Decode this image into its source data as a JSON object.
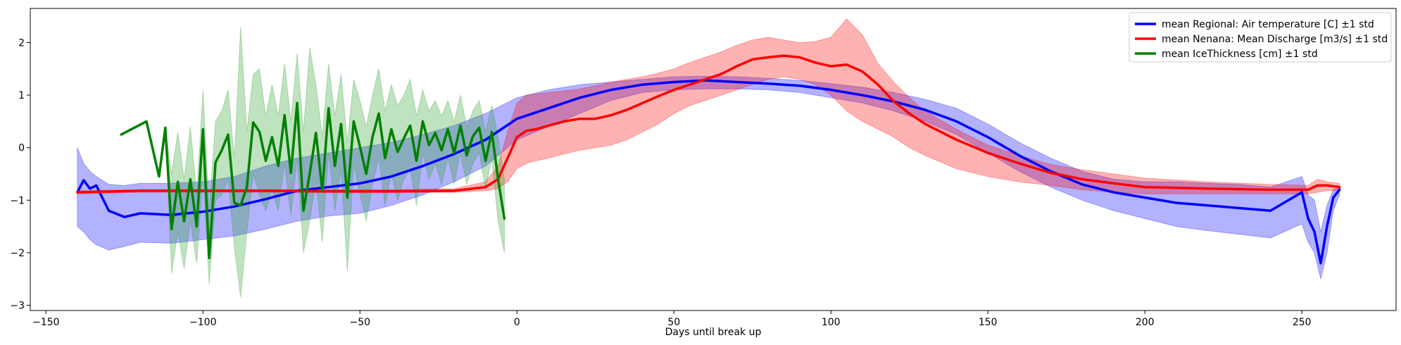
{
  "chart_data": {
    "type": "line",
    "title": "",
    "xlabel": "Days until break up",
    "ylabel": "",
    "xlim": [
      -155,
      280
    ],
    "ylim": [
      -3.1,
      2.65
    ],
    "xticks": [
      -150,
      -100,
      -50,
      0,
      50,
      100,
      150,
      200,
      250
    ],
    "xtick_labels": [
      "−150",
      "−100",
      "−50",
      "0",
      "50",
      "100",
      "150",
      "200",
      "250"
    ],
    "yticks": [
      -3,
      -2,
      -1,
      0,
      1,
      2
    ],
    "ytick_labels": [
      "−3",
      "−2",
      "−1",
      "0",
      "1",
      "2"
    ],
    "grid": false,
    "legend": "top-right",
    "series": [
      {
        "name": "mean Regional: Air temperature [C] ±1 std",
        "color": "#0000ff",
        "band_color": "#0000ff",
        "x": [
          -140,
          -138,
          -136,
          -134,
          -130,
          -125,
          -120,
          -110,
          -100,
          -90,
          -80,
          -70,
          -60,
          -50,
          -40,
          -30,
          -20,
          -10,
          0,
          10,
          20,
          30,
          40,
          50,
          60,
          70,
          80,
          90,
          100,
          110,
          120,
          130,
          140,
          150,
          160,
          170,
          180,
          190,
          200,
          210,
          220,
          230,
          240,
          250,
          252,
          254,
          256,
          258,
          260,
          262
        ],
        "mean": [
          -0.85,
          -0.62,
          -0.78,
          -0.72,
          -1.2,
          -1.32,
          -1.25,
          -1.28,
          -1.22,
          -1.12,
          -0.98,
          -0.82,
          -0.75,
          -0.68,
          -0.55,
          -0.35,
          -0.12,
          0.15,
          0.55,
          0.75,
          0.95,
          1.1,
          1.2,
          1.25,
          1.28,
          1.25,
          1.22,
          1.18,
          1.1,
          1.0,
          0.88,
          0.72,
          0.5,
          0.2,
          -0.15,
          -0.45,
          -0.7,
          -0.85,
          -0.95,
          -1.05,
          -1.1,
          -1.15,
          -1.2,
          -0.85,
          -1.35,
          -1.6,
          -2.2,
          -1.5,
          -0.95,
          -0.8
        ],
        "upper": [
          0.0,
          -0.3,
          -0.45,
          -0.55,
          -0.7,
          -0.72,
          -0.68,
          -0.68,
          -0.65,
          -0.55,
          -0.35,
          -0.2,
          -0.1,
          0.0,
          0.1,
          0.25,
          0.42,
          0.65,
          0.95,
          1.1,
          1.2,
          1.25,
          1.3,
          1.35,
          1.36,
          1.35,
          1.32,
          1.28,
          1.22,
          1.15,
          1.05,
          0.92,
          0.75,
          0.45,
          0.1,
          -0.2,
          -0.45,
          -0.6,
          -0.65,
          -0.65,
          -0.68,
          -0.7,
          -0.75,
          -0.55,
          -0.9,
          -1.0,
          -1.6,
          -1.1,
          -0.8,
          -0.75
        ],
        "lower": [
          -1.5,
          -1.6,
          -1.75,
          -1.85,
          -1.95,
          -1.88,
          -1.8,
          -1.82,
          -1.75,
          -1.68,
          -1.55,
          -1.4,
          -1.3,
          -1.25,
          -1.1,
          -0.9,
          -0.65,
          -0.35,
          0.15,
          0.4,
          0.65,
          0.9,
          1.05,
          1.1,
          1.12,
          1.12,
          1.1,
          1.05,
          0.95,
          0.85,
          0.7,
          0.5,
          0.25,
          -0.1,
          -0.45,
          -0.75,
          -1.0,
          -1.2,
          -1.35,
          -1.5,
          -1.58,
          -1.65,
          -1.72,
          -1.45,
          -1.8,
          -2.0,
          -2.5,
          -2.0,
          -1.2,
          -0.9
        ]
      },
      {
        "name": "mean Nenana: Mean Discharge [m3/s] ±1 std",
        "color": "#ff0000",
        "band_color": "#ff0000",
        "x": [
          -140,
          -120,
          -100,
          -80,
          -60,
          -40,
          -20,
          -10,
          -6,
          -3,
          0,
          3,
          6,
          10,
          15,
          20,
          25,
          30,
          35,
          40,
          45,
          50,
          55,
          60,
          65,
          70,
          75,
          80,
          85,
          90,
          95,
          100,
          105,
          110,
          115,
          120,
          125,
          130,
          140,
          150,
          160,
          170,
          180,
          190,
          200,
          220,
          240,
          252,
          255,
          258,
          262
        ],
        "mean": [
          -0.85,
          -0.82,
          -0.82,
          -0.82,
          -0.83,
          -0.83,
          -0.82,
          -0.75,
          -0.6,
          -0.2,
          0.2,
          0.32,
          0.35,
          0.42,
          0.5,
          0.55,
          0.55,
          0.62,
          0.72,
          0.85,
          0.98,
          1.1,
          1.2,
          1.3,
          1.4,
          1.55,
          1.68,
          1.72,
          1.75,
          1.72,
          1.62,
          1.55,
          1.58,
          1.45,
          1.2,
          0.88,
          0.65,
          0.45,
          0.15,
          -0.1,
          -0.3,
          -0.48,
          -0.6,
          -0.68,
          -0.75,
          -0.78,
          -0.8,
          -0.8,
          -0.72,
          -0.72,
          -0.75
        ],
        "upper": [
          -0.82,
          -0.8,
          -0.8,
          -0.8,
          -0.8,
          -0.8,
          -0.78,
          -0.65,
          -0.35,
          0.3,
          0.85,
          1.0,
          1.02,
          1.05,
          1.08,
          1.12,
          1.18,
          1.25,
          1.3,
          1.35,
          1.42,
          1.5,
          1.62,
          1.72,
          1.82,
          1.95,
          2.05,
          2.1,
          2.05,
          2.0,
          2.02,
          2.1,
          2.45,
          2.15,
          1.6,
          1.25,
          0.95,
          0.7,
          0.35,
          0.05,
          -0.15,
          -0.32,
          -0.42,
          -0.5,
          -0.58,
          -0.65,
          -0.7,
          -0.72,
          -0.6,
          -0.65,
          -0.68
        ],
        "lower": [
          -0.88,
          -0.85,
          -0.85,
          -0.85,
          -0.86,
          -0.86,
          -0.85,
          -0.82,
          -0.78,
          -0.65,
          -0.4,
          -0.3,
          -0.25,
          -0.2,
          -0.12,
          -0.05,
          0.0,
          0.05,
          0.15,
          0.3,
          0.45,
          0.65,
          0.8,
          0.9,
          1.0,
          1.1,
          1.2,
          1.3,
          1.35,
          1.3,
          1.2,
          1.0,
          0.7,
          0.5,
          0.35,
          0.2,
          0.0,
          -0.15,
          -0.4,
          -0.55,
          -0.65,
          -0.72,
          -0.8,
          -0.85,
          -0.88,
          -0.88,
          -0.88,
          -0.88,
          -0.85,
          -0.82,
          -0.82
        ]
      },
      {
        "name": "mean IceThickness [cm] ±1 std",
        "color": "#008000",
        "band_color": "#2ca02c",
        "x": [
          -126,
          -118,
          -114,
          -112,
          -110,
          -108,
          -106,
          -104,
          -102,
          -100,
          -98,
          -96,
          -94,
          -92,
          -90,
          -88,
          -86,
          -84,
          -82,
          -80,
          -78,
          -76,
          -74,
          -72,
          -70,
          -68,
          -66,
          -64,
          -62,
          -60,
          -58,
          -56,
          -54,
          -52,
          -50,
          -48,
          -46,
          -44,
          -42,
          -40,
          -38,
          -36,
          -34,
          -32,
          -30,
          -28,
          -26,
          -24,
          -22,
          -20,
          -18,
          -16,
          -14,
          -12,
          -10,
          -8,
          -6,
          -4
        ],
        "mean": [
          0.25,
          0.5,
          -0.55,
          0.38,
          -1.55,
          -0.65,
          -1.4,
          -0.6,
          -1.5,
          0.35,
          -2.1,
          -0.28,
          -0.05,
          0.25,
          -1.05,
          -1.1,
          -0.75,
          0.48,
          0.3,
          -0.25,
          0.2,
          -0.35,
          0.62,
          -0.48,
          0.85,
          -1.2,
          -0.5,
          0.28,
          -0.82,
          0.75,
          -0.35,
          0.45,
          -0.95,
          0.5,
          0.02,
          -0.5,
          0.2,
          0.65,
          -0.2,
          0.35,
          -0.08,
          0.18,
          0.42,
          -0.25,
          0.5,
          0.05,
          0.28,
          -0.05,
          0.35,
          -0.1,
          0.42,
          -0.15,
          0.22,
          0.38,
          -0.25,
          0.3,
          -0.6,
          -1.35
        ],
        "upper": [
          0.25,
          0.5,
          -0.55,
          0.38,
          -0.5,
          0.3,
          -0.6,
          0.4,
          -0.9,
          1.1,
          -1.2,
          0.5,
          0.7,
          1.1,
          -0.2,
          2.3,
          0.3,
          1.4,
          1.5,
          0.6,
          1.2,
          0.6,
          1.6,
          0.5,
          1.8,
          0.3,
          1.9,
          1.2,
          0.2,
          1.6,
          0.6,
          1.4,
          0.1,
          1.3,
          0.9,
          0.4,
          1.0,
          1.5,
          0.7,
          1.2,
          0.8,
          1.0,
          1.3,
          0.6,
          1.1,
          0.7,
          0.9,
          0.6,
          0.9,
          0.5,
          1.0,
          0.4,
          0.7,
          0.9,
          0.3,
          0.8,
          0.2,
          -0.6
        ],
        "lower": [
          0.25,
          0.5,
          -0.55,
          0.38,
          -2.4,
          -1.6,
          -2.3,
          -1.4,
          -2.2,
          -0.5,
          -2.6,
          -1.0,
          -0.9,
          -0.6,
          -1.9,
          -2.85,
          -1.6,
          -0.5,
          -0.9,
          -1.2,
          -0.8,
          -1.2,
          -0.3,
          -1.3,
          -0.2,
          -2.0,
          -1.4,
          -0.6,
          -1.8,
          -0.1,
          -1.2,
          -0.4,
          -2.35,
          -0.3,
          -0.9,
          -1.4,
          -0.7,
          -0.2,
          -1.1,
          -0.5,
          -1.0,
          -0.6,
          -0.4,
          -1.1,
          -0.1,
          -0.6,
          -0.3,
          -0.7,
          -0.2,
          -0.7,
          -0.1,
          -0.7,
          -0.3,
          -0.1,
          -0.8,
          -0.2,
          -1.4,
          -2.0
        ]
      }
    ]
  }
}
